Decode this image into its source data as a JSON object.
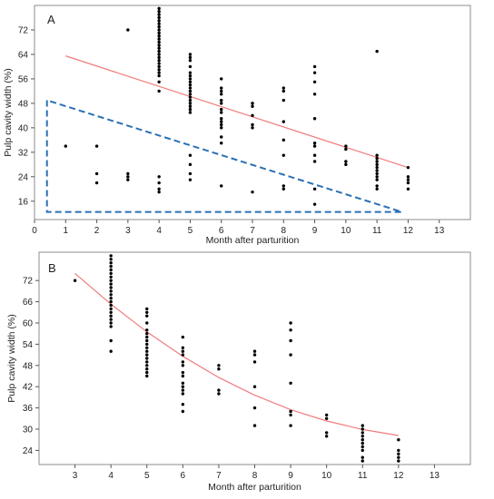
{
  "chart_data": [
    {
      "panel_label": "A",
      "type": "scatter",
      "xlabel": "Month after parturition",
      "ylabel": "Pulp cavity width (%)",
      "xlim": [
        0,
        14
      ],
      "ylim": [
        10,
        80
      ],
      "x_ticks": [
        0,
        1,
        2,
        3,
        4,
        5,
        6,
        7,
        8,
        9,
        10,
        11,
        12,
        13
      ],
      "y_ticks": [
        16,
        24,
        32,
        40,
        48,
        56,
        64,
        72
      ],
      "grid": false,
      "colors": {
        "points": "#000000",
        "fit": "#f07c7c",
        "triangle": "#2a70b5"
      },
      "points": [
        [
          1,
          34
        ],
        [
          2,
          34
        ],
        [
          2,
          25
        ],
        [
          2,
          22
        ],
        [
          3,
          72
        ],
        [
          3,
          25
        ],
        [
          3,
          24
        ],
        [
          3,
          23
        ],
        [
          4,
          79
        ],
        [
          4,
          78
        ],
        [
          4,
          77
        ],
        [
          4,
          76
        ],
        [
          4,
          75
        ],
        [
          4,
          74
        ],
        [
          4,
          73
        ],
        [
          4,
          72
        ],
        [
          4,
          71
        ],
        [
          4,
          70
        ],
        [
          4,
          69
        ],
        [
          4,
          68
        ],
        [
          4,
          67
        ],
        [
          4,
          66
        ],
        [
          4,
          65
        ],
        [
          4,
          64
        ],
        [
          4,
          63
        ],
        [
          4,
          62
        ],
        [
          4,
          61
        ],
        [
          4,
          60
        ],
        [
          4,
          59
        ],
        [
          4,
          58
        ],
        [
          4,
          57
        ],
        [
          4,
          55
        ],
        [
          4,
          52
        ],
        [
          4,
          24
        ],
        [
          4,
          22
        ],
        [
          4,
          20
        ],
        [
          4,
          19
        ],
        [
          5,
          64
        ],
        [
          5,
          63
        ],
        [
          5,
          62
        ],
        [
          5,
          60
        ],
        [
          5,
          58
        ],
        [
          5,
          57
        ],
        [
          5,
          56
        ],
        [
          5,
          55
        ],
        [
          5,
          54
        ],
        [
          5,
          53
        ],
        [
          5,
          52
        ],
        [
          5,
          51
        ],
        [
          5,
          50
        ],
        [
          5,
          49
        ],
        [
          5,
          48
        ],
        [
          5,
          47
        ],
        [
          5,
          46
        ],
        [
          5,
          45
        ],
        [
          5,
          31
        ],
        [
          5,
          28
        ],
        [
          5,
          25
        ],
        [
          5,
          23
        ],
        [
          6,
          56
        ],
        [
          6,
          53
        ],
        [
          6,
          52
        ],
        [
          6,
          51
        ],
        [
          6,
          49
        ],
        [
          6,
          48
        ],
        [
          6,
          46
        ],
        [
          6,
          45
        ],
        [
          6,
          43
        ],
        [
          6,
          42
        ],
        [
          6,
          41
        ],
        [
          6,
          40
        ],
        [
          6,
          37
        ],
        [
          6,
          35
        ],
        [
          6,
          21
        ],
        [
          7,
          48
        ],
        [
          7,
          47
        ],
        [
          7,
          44
        ],
        [
          7,
          41
        ],
        [
          7,
          40
        ],
        [
          7,
          19
        ],
        [
          8,
          53
        ],
        [
          8,
          52
        ],
        [
          8,
          49
        ],
        [
          8,
          42
        ],
        [
          8,
          36
        ],
        [
          8,
          31
        ],
        [
          8,
          21
        ],
        [
          8,
          20
        ],
        [
          9,
          60
        ],
        [
          9,
          58
        ],
        [
          9,
          55
        ],
        [
          9,
          51
        ],
        [
          9,
          43
        ],
        [
          9,
          35
        ],
        [
          9,
          34
        ],
        [
          9,
          31
        ],
        [
          9,
          29
        ],
        [
          9,
          20
        ],
        [
          9,
          15
        ],
        [
          10,
          34
        ],
        [
          10,
          33
        ],
        [
          10,
          29
        ],
        [
          10,
          28
        ],
        [
          11,
          65
        ],
        [
          11,
          31
        ],
        [
          11,
          30
        ],
        [
          11,
          29
        ],
        [
          11,
          28
        ],
        [
          11,
          27
        ],
        [
          11,
          26
        ],
        [
          11,
          25
        ],
        [
          11,
          24
        ],
        [
          11,
          23
        ],
        [
          11,
          21
        ],
        [
          11,
          20
        ],
        [
          12,
          27
        ],
        [
          12,
          24
        ],
        [
          12,
          23
        ],
        [
          12,
          22
        ],
        [
          12,
          20
        ]
      ],
      "fit_line": {
        "x": [
          1,
          12
        ],
        "y": [
          63.5,
          27
        ]
      },
      "triangle": [
        [
          0.4,
          49
        ],
        [
          0.4,
          12.5
        ],
        [
          11.8,
          12.5
        ]
      ]
    },
    {
      "panel_label": "B",
      "type": "scatter",
      "xlabel": "Month after parturition",
      "ylabel": "Pulp cavity width (%)",
      "xlim": [
        2,
        14
      ],
      "ylim": [
        20,
        80
      ],
      "x_ticks": [
        3,
        4,
        5,
        6,
        7,
        8,
        9,
        10,
        11,
        12,
        13
      ],
      "y_ticks": [
        24,
        30,
        36,
        42,
        48,
        54,
        60,
        66,
        72
      ],
      "grid": false,
      "colors": {
        "points": "#000000",
        "fit": "#f07c7c"
      },
      "points": [
        [
          3,
          72
        ],
        [
          4,
          79
        ],
        [
          4,
          78
        ],
        [
          4,
          77
        ],
        [
          4,
          76
        ],
        [
          4,
          75
        ],
        [
          4,
          74
        ],
        [
          4,
          73
        ],
        [
          4,
          72
        ],
        [
          4,
          71
        ],
        [
          4,
          70
        ],
        [
          4,
          69
        ],
        [
          4,
          68
        ],
        [
          4,
          67
        ],
        [
          4,
          66
        ],
        [
          4,
          65
        ],
        [
          4,
          64
        ],
        [
          4,
          63
        ],
        [
          4,
          62
        ],
        [
          4,
          61
        ],
        [
          4,
          60
        ],
        [
          4,
          59
        ],
        [
          4,
          55
        ],
        [
          4,
          52
        ],
        [
          5,
          64
        ],
        [
          5,
          63
        ],
        [
          5,
          62
        ],
        [
          5,
          60
        ],
        [
          5,
          58
        ],
        [
          5,
          57
        ],
        [
          5,
          56
        ],
        [
          5,
          55
        ],
        [
          5,
          54
        ],
        [
          5,
          53
        ],
        [
          5,
          52
        ],
        [
          5,
          51
        ],
        [
          5,
          50
        ],
        [
          5,
          49
        ],
        [
          5,
          48
        ],
        [
          5,
          47
        ],
        [
          5,
          46
        ],
        [
          5,
          45
        ],
        [
          6,
          56
        ],
        [
          6,
          53
        ],
        [
          6,
          52
        ],
        [
          6,
          51
        ],
        [
          6,
          49
        ],
        [
          6,
          48
        ],
        [
          6,
          46
        ],
        [
          6,
          45
        ],
        [
          6,
          43
        ],
        [
          6,
          42
        ],
        [
          6,
          41
        ],
        [
          6,
          40
        ],
        [
          6,
          37
        ],
        [
          6,
          35
        ],
        [
          7,
          48
        ],
        [
          7,
          47
        ],
        [
          7,
          41
        ],
        [
          7,
          40
        ],
        [
          8,
          52
        ],
        [
          8,
          51
        ],
        [
          8,
          49
        ],
        [
          8,
          42
        ],
        [
          8,
          36
        ],
        [
          8,
          31
        ],
        [
          9,
          60
        ],
        [
          9,
          58
        ],
        [
          9,
          55
        ],
        [
          9,
          51
        ],
        [
          9,
          43
        ],
        [
          9,
          35
        ],
        [
          9,
          34
        ],
        [
          9,
          31
        ],
        [
          10,
          34
        ],
        [
          10,
          33
        ],
        [
          10,
          29
        ],
        [
          10,
          28
        ],
        [
          11,
          31
        ],
        [
          11,
          30
        ],
        [
          11,
          29
        ],
        [
          11,
          28
        ],
        [
          11,
          27
        ],
        [
          11,
          26
        ],
        [
          11,
          25
        ],
        [
          11,
          24
        ],
        [
          11,
          22
        ],
        [
          11,
          21
        ],
        [
          12,
          27
        ],
        [
          12,
          24
        ],
        [
          12,
          23
        ],
        [
          12,
          22
        ],
        [
          12,
          21
        ]
      ],
      "fit_curve": {
        "x": [
          3,
          4,
          5,
          6,
          7,
          8,
          9,
          10,
          11,
          12
        ],
        "y": [
          74,
          65.3,
          57.5,
          50.6,
          44.6,
          39.6,
          35.5,
          32.3,
          29.9,
          28.2
        ]
      }
    }
  ]
}
